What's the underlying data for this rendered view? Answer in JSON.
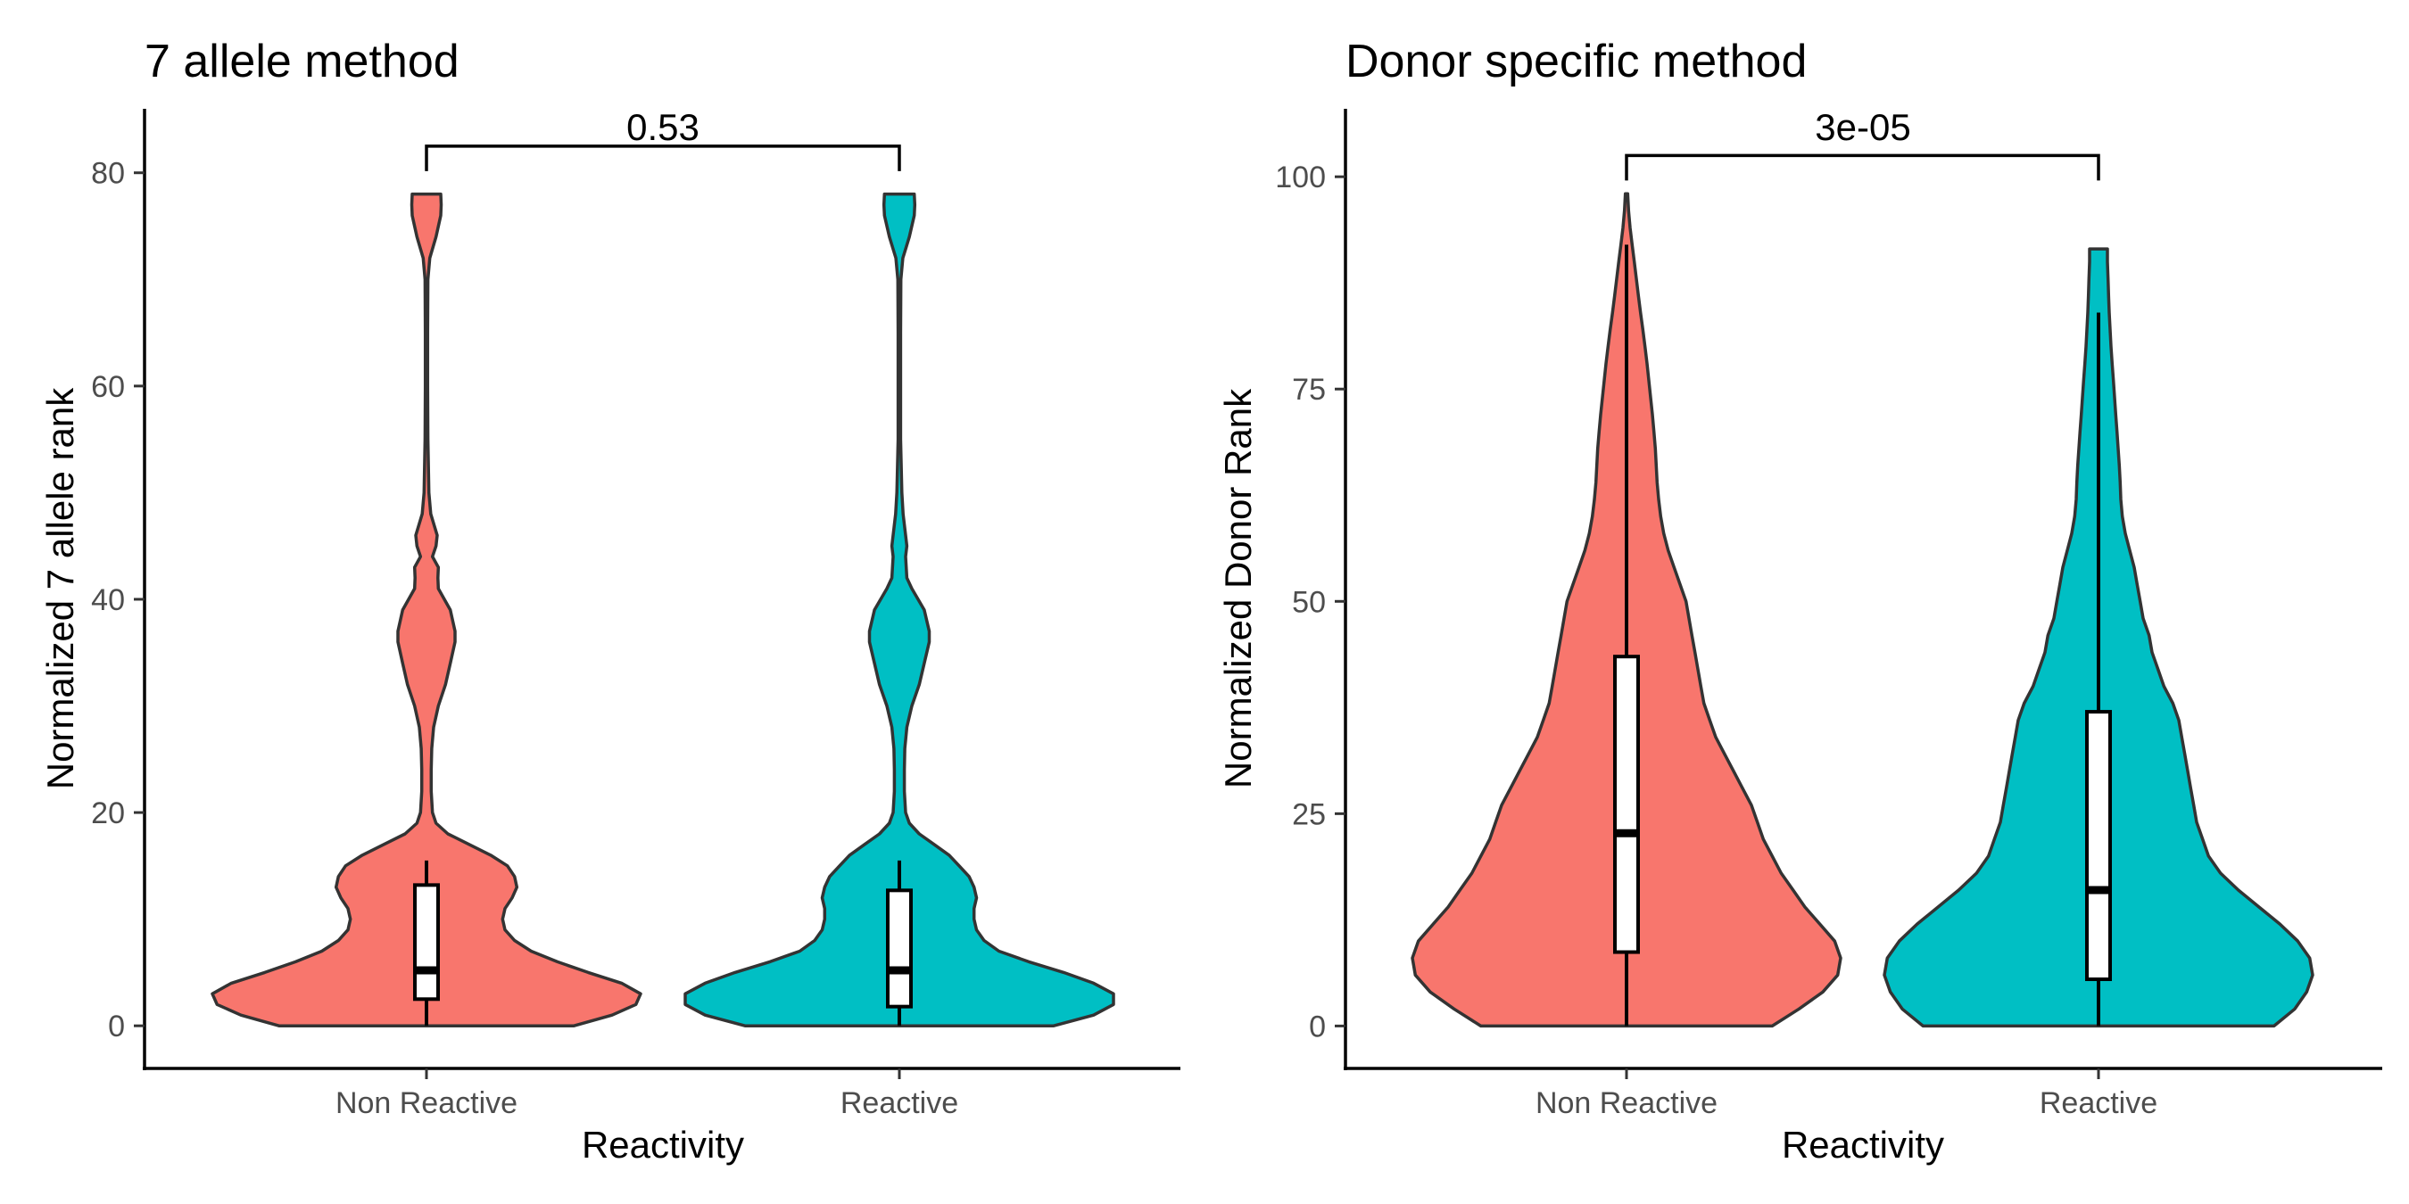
{
  "chart_data": [
    {
      "type": "violin",
      "title": "7 allele method",
      "xlabel": "Reactivity",
      "ylabel": "Normalized 7 allele rank",
      "ylim": [
        -4,
        86
      ],
      "yticks": [
        0,
        20,
        40,
        60,
        80
      ],
      "categories": [
        "Non Reactive",
        "Reactive"
      ],
      "groups": [
        {
          "name": "Non Reactive",
          "color": "#F8766D",
          "y_min": 0,
          "y_max": 78,
          "box": {
            "q1": 2.5,
            "median": 5.2,
            "q3": 13.2,
            "whisker_low": 0,
            "whisker_high": 15.5
          },
          "density": [
            [
              0,
              0.62
            ],
            [
              1,
              0.78
            ],
            [
              2,
              0.88
            ],
            [
              3,
              0.9
            ],
            [
              4,
              0.82
            ],
            [
              5,
              0.68
            ],
            [
              6,
              0.55
            ],
            [
              7,
              0.44
            ],
            [
              8,
              0.37
            ],
            [
              9,
              0.33
            ],
            [
              10,
              0.32
            ],
            [
              11,
              0.33
            ],
            [
              12,
              0.36
            ],
            [
              13,
              0.38
            ],
            [
              14,
              0.37
            ],
            [
              15,
              0.34
            ],
            [
              16,
              0.27
            ],
            [
              17,
              0.18
            ],
            [
              18,
              0.09
            ],
            [
              19,
              0.04
            ],
            [
              20,
              0.025
            ],
            [
              22,
              0.02
            ],
            [
              24,
              0.02
            ],
            [
              26,
              0.022
            ],
            [
              28,
              0.03
            ],
            [
              30,
              0.05
            ],
            [
              32,
              0.08
            ],
            [
              34,
              0.1
            ],
            [
              36,
              0.12
            ],
            [
              37,
              0.12
            ],
            [
              39,
              0.1
            ],
            [
              41,
              0.05
            ],
            [
              42,
              0.048
            ],
            [
              43,
              0.05
            ],
            [
              44,
              0.025
            ],
            [
              45,
              0.04
            ],
            [
              46,
              0.045
            ],
            [
              48,
              0.018
            ],
            [
              50,
              0.01
            ],
            [
              55,
              0.006
            ],
            [
              60,
              0.005
            ],
            [
              65,
              0.005
            ],
            [
              70,
              0.006
            ],
            [
              72,
              0.014
            ],
            [
              74,
              0.04
            ],
            [
              76,
              0.06
            ],
            [
              77,
              0.062
            ],
            [
              78,
              0.06
            ]
          ]
        },
        {
          "name": "Reactive",
          "color": "#00BFC4",
          "y_min": 0,
          "y_max": 78,
          "box": {
            "q1": 1.8,
            "median": 5.2,
            "q3": 12.7,
            "whisker_low": 0,
            "whisker_high": 15.5
          },
          "density": [
            [
              0,
              0.62
            ],
            [
              1,
              0.78
            ],
            [
              2,
              0.86
            ],
            [
              3,
              0.86
            ],
            [
              4,
              0.78
            ],
            [
              5,
              0.66
            ],
            [
              6,
              0.52
            ],
            [
              7,
              0.4
            ],
            [
              8,
              0.34
            ],
            [
              9,
              0.31
            ],
            [
              10,
              0.3
            ],
            [
              11,
              0.3
            ],
            [
              12,
              0.31
            ],
            [
              13,
              0.3
            ],
            [
              14,
              0.28
            ],
            [
              15,
              0.24
            ],
            [
              16,
              0.2
            ],
            [
              17,
              0.14
            ],
            [
              18,
              0.08
            ],
            [
              19,
              0.04
            ],
            [
              20,
              0.025
            ],
            [
              22,
              0.02
            ],
            [
              24,
              0.02
            ],
            [
              26,
              0.022
            ],
            [
              28,
              0.03
            ],
            [
              30,
              0.05
            ],
            [
              32,
              0.08
            ],
            [
              34,
              0.1
            ],
            [
              36,
              0.12
            ],
            [
              37,
              0.12
            ],
            [
              39,
              0.1
            ],
            [
              41,
              0.05
            ],
            [
              42,
              0.03
            ],
            [
              44,
              0.025
            ],
            [
              45,
              0.03
            ],
            [
              46,
              0.025
            ],
            [
              48,
              0.015
            ],
            [
              50,
              0.01
            ],
            [
              55,
              0.005
            ],
            [
              60,
              0.005
            ],
            [
              65,
              0.005
            ],
            [
              70,
              0.006
            ],
            [
              72,
              0.014
            ],
            [
              74,
              0.04
            ],
            [
              76,
              0.06
            ],
            [
              77,
              0.062
            ],
            [
              78,
              0.06
            ]
          ]
        }
      ],
      "comparison": {
        "label": "0.53",
        "from": "Non Reactive",
        "to": "Reactive",
        "y": 82.5
      }
    },
    {
      "type": "violin",
      "title": "Donor specific method",
      "xlabel": "Reactivity",
      "ylabel": "Normalized Donor Rank",
      "ylim": [
        -5,
        108
      ],
      "yticks": [
        0,
        25,
        50,
        75,
        100
      ],
      "categories": [
        "Non Reactive",
        "Reactive"
      ],
      "groups": [
        {
          "name": "Non Reactive",
          "color": "#F8766D",
          "y_min": 0,
          "y_max": 98,
          "box": {
            "q1": 8.7,
            "median": 22.7,
            "q3": 43.5,
            "whisker_low": 0,
            "whisker_high": 92
          },
          "density": [
            [
              0,
              0.49
            ],
            [
              2,
              0.58
            ],
            [
              4,
              0.66
            ],
            [
              6,
              0.71
            ],
            [
              8,
              0.72
            ],
            [
              10,
              0.7
            ],
            [
              12,
              0.65
            ],
            [
              14,
              0.6
            ],
            [
              16,
              0.56
            ],
            [
              18,
              0.52
            ],
            [
              20,
              0.49
            ],
            [
              22,
              0.46
            ],
            [
              24,
              0.44
            ],
            [
              26,
              0.42
            ],
            [
              28,
              0.39
            ],
            [
              30,
              0.36
            ],
            [
              32,
              0.33
            ],
            [
              34,
              0.3
            ],
            [
              36,
              0.28
            ],
            [
              38,
              0.26
            ],
            [
              40,
              0.25
            ],
            [
              42,
              0.24
            ],
            [
              44,
              0.23
            ],
            [
              46,
              0.22
            ],
            [
              48,
              0.21
            ],
            [
              50,
              0.2
            ],
            [
              52,
              0.18
            ],
            [
              54,
              0.16
            ],
            [
              56,
              0.14
            ],
            [
              58,
              0.125
            ],
            [
              60,
              0.115
            ],
            [
              62,
              0.108
            ],
            [
              64,
              0.103
            ],
            [
              66,
              0.1
            ],
            [
              68,
              0.097
            ],
            [
              70,
              0.092
            ],
            [
              72,
              0.087
            ],
            [
              74,
              0.081
            ],
            [
              76,
              0.075
            ],
            [
              78,
              0.069
            ],
            [
              80,
              0.062
            ],
            [
              82,
              0.055
            ],
            [
              84,
              0.047
            ],
            [
              86,
              0.04
            ],
            [
              88,
              0.033
            ],
            [
              90,
              0.026
            ],
            [
              92,
              0.019
            ],
            [
              94,
              0.012
            ],
            [
              96,
              0.007
            ],
            [
              98,
              0.004
            ]
          ]
        },
        {
          "name": "Reactive",
          "color": "#00BFC4",
          "y_min": 0,
          "y_max": 91.5,
          "box": {
            "q1": 5.5,
            "median": 16,
            "q3": 37,
            "whisker_low": 0,
            "whisker_high": 84
          },
          "density": [
            [
              0,
              0.59
            ],
            [
              2,
              0.66
            ],
            [
              4,
              0.7
            ],
            [
              6,
              0.72
            ],
            [
              8,
              0.71
            ],
            [
              10,
              0.67
            ],
            [
              12,
              0.61
            ],
            [
              14,
              0.54
            ],
            [
              16,
              0.47
            ],
            [
              18,
              0.41
            ],
            [
              20,
              0.37
            ],
            [
              22,
              0.35
            ],
            [
              24,
              0.33
            ],
            [
              26,
              0.32
            ],
            [
              28,
              0.31
            ],
            [
              30,
              0.3
            ],
            [
              32,
              0.29
            ],
            [
              34,
              0.28
            ],
            [
              36,
              0.27
            ],
            [
              38,
              0.25
            ],
            [
              40,
              0.22
            ],
            [
              42,
              0.2
            ],
            [
              44,
              0.18
            ],
            [
              46,
              0.17
            ],
            [
              48,
              0.15
            ],
            [
              50,
              0.14
            ],
            [
              52,
              0.13
            ],
            [
              54,
              0.12
            ],
            [
              56,
              0.105
            ],
            [
              58,
              0.09
            ],
            [
              60,
              0.08
            ],
            [
              62,
              0.075
            ],
            [
              64,
              0.073
            ],
            [
              66,
              0.07
            ],
            [
              68,
              0.066
            ],
            [
              70,
              0.062
            ],
            [
              72,
              0.058
            ],
            [
              74,
              0.054
            ],
            [
              76,
              0.05
            ],
            [
              78,
              0.046
            ],
            [
              80,
              0.042
            ],
            [
              82,
              0.039
            ],
            [
              84,
              0.036
            ],
            [
              86,
              0.034
            ],
            [
              88,
              0.032
            ],
            [
              90,
              0.03
            ],
            [
              91.5,
              0.03
            ]
          ]
        }
      ],
      "comparison": {
        "label": "3e-05",
        "from": "Non Reactive",
        "to": "Reactive",
        "y": 102.5
      }
    }
  ]
}
